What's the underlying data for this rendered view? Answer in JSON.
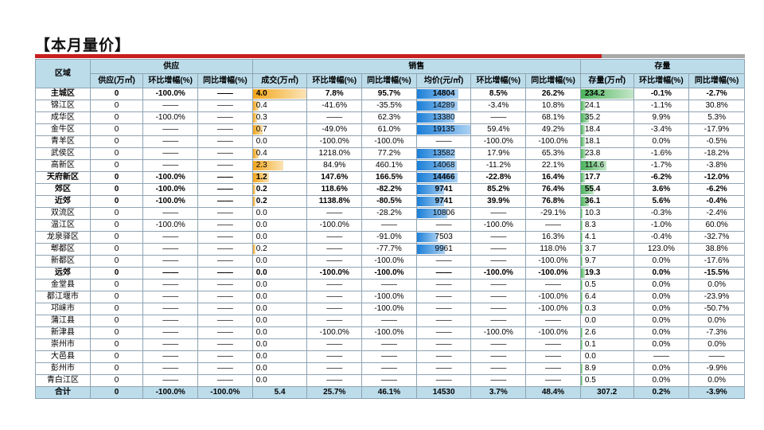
{
  "title": "【本月量价】",
  "table": {
    "groups": {
      "region": "区域",
      "supply": "供应",
      "sales": "销售",
      "stock": "存量"
    },
    "subheaders": [
      "供应(万㎡)",
      "环比增幅(%)",
      "同比增幅(%)",
      "成交(万㎡)",
      "环比增幅(%)",
      "同比增幅(%)",
      "均价(元/㎡)",
      "环比增幅(%)",
      "同比增幅(%)",
      "存量(万㎡)",
      "环比增幅(%)",
      "同比增幅(%)"
    ],
    "rows": [
      {
        "bold": true,
        "cells": [
          "主城区",
          "0",
          "-100.0%",
          "——",
          "4.0",
          "7.8%",
          "95.7%",
          "14804",
          "8.5%",
          "26.2%",
          "234.2",
          "-0.1%",
          "-2.7%"
        ],
        "deal": 4.0,
        "price": 14804,
        "stock": 234.2
      },
      {
        "bold": false,
        "cells": [
          "锦江区",
          "0",
          "——",
          "——",
          "0.4",
          "-41.6%",
          "-35.5%",
          "14289",
          "-3.4%",
          "10.8%",
          "24.1",
          "-1.1%",
          "30.8%"
        ],
        "deal": 0.4,
        "price": 14289,
        "stock": 24.1
      },
      {
        "bold": false,
        "cells": [
          "成华区",
          "0",
          "-100.0%",
          "——",
          "0.3",
          "——",
          "62.3%",
          "13380",
          "——",
          "68.1%",
          "35.2",
          "9.9%",
          "5.3%"
        ],
        "deal": 0.3,
        "price": 13380,
        "stock": 35.2
      },
      {
        "bold": false,
        "cells": [
          "金牛区",
          "0",
          "——",
          "——",
          "0.7",
          "-49.0%",
          "61.0%",
          "19135",
          "59.4%",
          "49.2%",
          "18.4",
          "-3.4%",
          "-17.9%"
        ],
        "deal": 0.7,
        "price": 19135,
        "stock": 18.4
      },
      {
        "bold": false,
        "cells": [
          "青羊区",
          "0",
          "——",
          "——",
          "0.0",
          "-100.0%",
          "-100.0%",
          "——",
          "-100.0%",
          "-100.0%",
          "18.1",
          "0.0%",
          "-0.5%"
        ],
        "deal": 0.0,
        "price": 0,
        "stock": 18.1
      },
      {
        "bold": false,
        "cells": [
          "武侯区",
          "0",
          "——",
          "——",
          "0.4",
          "1218.0%",
          "77.2%",
          "13582",
          "17.9%",
          "65.3%",
          "23.8",
          "-1.6%",
          "-18.2%"
        ],
        "deal": 0.4,
        "price": 13582,
        "stock": 23.8
      },
      {
        "bold": false,
        "cells": [
          "高新区",
          "0",
          "——",
          "——",
          "2.3",
          "84.9%",
          "460.1%",
          "14068",
          "-11.2%",
          "22.1%",
          "114.6",
          "-1.7%",
          "-3.8%"
        ],
        "deal": 2.3,
        "price": 14068,
        "stock": 114.6
      },
      {
        "bold": true,
        "cells": [
          "天府新区",
          "0",
          "-100.0%",
          "——",
          "1.2",
          "147.6%",
          "166.5%",
          "14466",
          "-22.8%",
          "16.4%",
          "17.7",
          "-6.2%",
          "-12.0%"
        ],
        "deal": 1.2,
        "price": 14466,
        "stock": 17.7
      },
      {
        "bold": true,
        "cells": [
          "郊区",
          "0",
          "-100.0%",
          "——",
          "0.2",
          "118.6%",
          "-82.2%",
          "9741",
          "85.2%",
          "76.4%",
          "55.4",
          "3.6%",
          "-6.2%"
        ],
        "deal": 0.2,
        "price": 9741,
        "stock": 55.4
      },
      {
        "bold": true,
        "cells": [
          "近郊",
          "0",
          "-100.0%",
          "——",
          "0.2",
          "1138.8%",
          "-80.5%",
          "9741",
          "39.9%",
          "76.8%",
          "36.1",
          "5.6%",
          "-0.4%"
        ],
        "deal": 0.2,
        "price": 9741,
        "stock": 36.1
      },
      {
        "bold": false,
        "cells": [
          "双流区",
          "0",
          "——",
          "——",
          "0.0",
          "——",
          "-28.2%",
          "10806",
          "——",
          "-29.1%",
          "10.3",
          "-0.3%",
          "-2.4%"
        ],
        "deal": 0.0,
        "price": 10806,
        "stock": 10.3
      },
      {
        "bold": false,
        "cells": [
          "温江区",
          "0",
          "-100.0%",
          "——",
          "0.0",
          "-100.0%",
          "——",
          "——",
          "-100.0%",
          "——",
          "8.3",
          "-1.0%",
          "60.0%"
        ],
        "deal": 0.0,
        "price": 0,
        "stock": 8.3
      },
      {
        "bold": false,
        "cells": [
          "龙泉驿区",
          "0",
          "——",
          "——",
          "0.0",
          "——",
          "-91.0%",
          "7503",
          "——",
          "16.3%",
          "4.1",
          "-0.4%",
          "-32.7%"
        ],
        "deal": 0.0,
        "price": 7503,
        "stock": 4.1
      },
      {
        "bold": false,
        "cells": [
          "郫都区",
          "0",
          "——",
          "——",
          "0.2",
          "——",
          "-77.7%",
          "9961",
          "——",
          "118.0%",
          "3.7",
          "123.0%",
          "38.8%"
        ],
        "deal": 0.2,
        "price": 9961,
        "stock": 3.7
      },
      {
        "bold": false,
        "cells": [
          "新都区",
          "0",
          "——",
          "——",
          "0.0",
          "——",
          "-100.0%",
          "——",
          "——",
          "-100.0%",
          "9.7",
          "0.0%",
          "-17.6%"
        ],
        "deal": 0.0,
        "price": 0,
        "stock": 9.7
      },
      {
        "bold": true,
        "cells": [
          "远郊",
          "0",
          "——",
          "——",
          "0.0",
          "-100.0%",
          "-100.0%",
          "——",
          "-100.0%",
          "-100.0%",
          "19.3",
          "0.0%",
          "-15.5%"
        ],
        "deal": 0.0,
        "price": 0,
        "stock": 19.3
      },
      {
        "bold": false,
        "cells": [
          "金堂县",
          "0",
          "——",
          "——",
          "0.0",
          "——",
          "——",
          "——",
          "——",
          "——",
          "0.5",
          "0.0%",
          "0.0%"
        ],
        "deal": 0.0,
        "price": 0,
        "stock": 0.5
      },
      {
        "bold": false,
        "cells": [
          "都江堰市",
          "0",
          "——",
          "——",
          "0.0",
          "——",
          "-100.0%",
          "——",
          "——",
          "-100.0%",
          "6.4",
          "0.0%",
          "-23.9%"
        ],
        "deal": 0.0,
        "price": 0,
        "stock": 6.4
      },
      {
        "bold": false,
        "cells": [
          "邛崃市",
          "0",
          "——",
          "——",
          "0.0",
          "——",
          "-100.0%",
          "——",
          "——",
          "-100.0%",
          "0.3",
          "0.0%",
          "-50.7%"
        ],
        "deal": 0.0,
        "price": 0,
        "stock": 0.3
      },
      {
        "bold": false,
        "cells": [
          "蒲江县",
          "0",
          "——",
          "——",
          "0.0",
          "——",
          "——",
          "——",
          "——",
          "——",
          "0.0",
          "0.0%",
          "0.0%"
        ],
        "deal": 0.0,
        "price": 0,
        "stock": 0.0
      },
      {
        "bold": false,
        "cells": [
          "新津县",
          "0",
          "——",
          "——",
          "0.0",
          "-100.0%",
          "-100.0%",
          "——",
          "-100.0%",
          "-100.0%",
          "2.6",
          "0.0%",
          "-7.3%"
        ],
        "deal": 0.0,
        "price": 0,
        "stock": 2.6
      },
      {
        "bold": false,
        "cells": [
          "崇州市",
          "0",
          "——",
          "——",
          "0.0",
          "——",
          "——",
          "——",
          "——",
          "——",
          "0.1",
          "0.0%",
          "0.0%"
        ],
        "deal": 0.0,
        "price": 0,
        "stock": 0.1
      },
      {
        "bold": false,
        "cells": [
          "大邑县",
          "0",
          "——",
          "——",
          "0.0",
          "——",
          "——",
          "——",
          "——",
          "——",
          "0.0",
          "——",
          "——"
        ],
        "deal": 0.0,
        "price": 0,
        "stock": 0.0
      },
      {
        "bold": false,
        "cells": [
          "彭州市",
          "0",
          "——",
          "——",
          "0.0",
          "——",
          "——",
          "——",
          "——",
          "——",
          "8.9",
          "0.0%",
          "-9.9%"
        ],
        "deal": 0.0,
        "price": 0,
        "stock": 8.9
      },
      {
        "bold": false,
        "cells": [
          "青白江区",
          "0",
          "——",
          "——",
          "0.0",
          "——",
          "——",
          "——",
          "——",
          "——",
          "0.5",
          "0.0%",
          "0.0%"
        ],
        "deal": 0.0,
        "price": 0,
        "stock": 0.5
      }
    ],
    "total": [
      "合计",
      "0",
      "-100.0%",
      "-100.0%",
      "5.4",
      "25.7%",
      "46.1%",
      "14530",
      "3.7%",
      "48.4%",
      "307.2",
      "0.2%",
      "-3.9%"
    ],
    "bar_max": {
      "deal": 4.0,
      "price": 19135,
      "stock": 234.2
    },
    "bar_colors": {
      "deal": "#f2a71d",
      "price": "#1b7fd8",
      "stock": "#4cb35c"
    }
  }
}
